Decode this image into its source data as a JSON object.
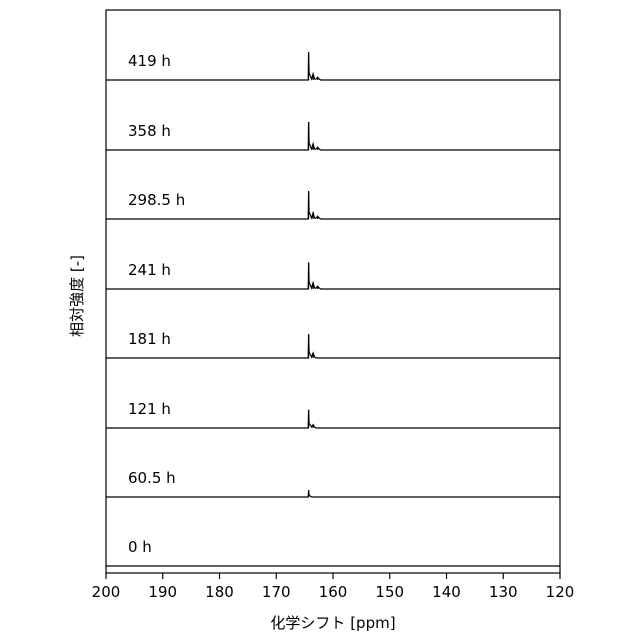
{
  "chart_data": {
    "type": "line",
    "subtype": "stacked-spectra",
    "xlabel": "化学シフト [ppm]",
    "ylabel": "相対強度 [-]",
    "xlim": [
      200,
      120
    ],
    "x_reversed": true,
    "x_ticks": [
      200,
      190,
      180,
      170,
      160,
      150,
      140,
      130,
      120
    ],
    "y_ticks_shown": false,
    "grid": false,
    "series": [
      {
        "name": "419 h",
        "peaks": [
          {
            "ppm": 164.3,
            "height": 1.0
          },
          {
            "ppm": 163.5,
            "height": 0.22
          },
          {
            "ppm": 162.7,
            "height": 0.1
          }
        ]
      },
      {
        "name": "358 h",
        "peaks": [
          {
            "ppm": 164.3,
            "height": 1.0
          },
          {
            "ppm": 163.5,
            "height": 0.22
          },
          {
            "ppm": 162.7,
            "height": 0.1
          }
        ]
      },
      {
        "name": "298.5 h",
        "peaks": [
          {
            "ppm": 164.3,
            "height": 1.0
          },
          {
            "ppm": 163.5,
            "height": 0.22
          },
          {
            "ppm": 162.7,
            "height": 0.1
          }
        ]
      },
      {
        "name": "241 h",
        "peaks": [
          {
            "ppm": 164.3,
            "height": 0.95
          },
          {
            "ppm": 163.5,
            "height": 0.22
          },
          {
            "ppm": 162.7,
            "height": 0.1
          }
        ]
      },
      {
        "name": "181 h",
        "peaks": [
          {
            "ppm": 164.3,
            "height": 0.85
          },
          {
            "ppm": 163.5,
            "height": 0.18
          }
        ]
      },
      {
        "name": "121 h",
        "peaks": [
          {
            "ppm": 164.3,
            "height": 0.65
          },
          {
            "ppm": 163.5,
            "height": 0.12
          }
        ]
      },
      {
        "name": "60.5 h",
        "peaks": [
          {
            "ppm": 164.3,
            "height": 0.25
          }
        ]
      },
      {
        "name": "0 h",
        "peaks": []
      }
    ]
  }
}
